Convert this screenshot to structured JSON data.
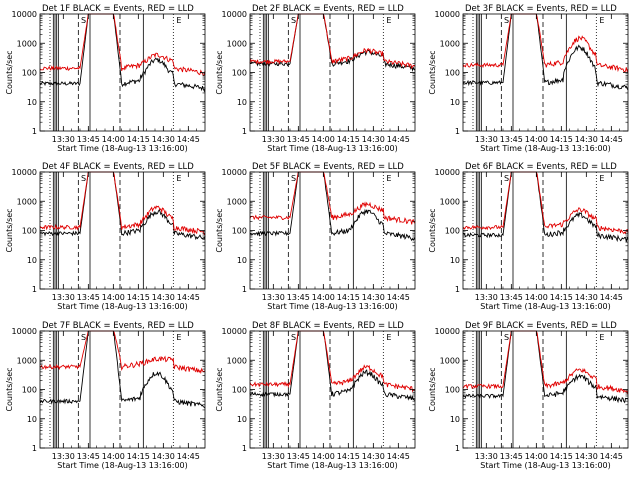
{
  "chart_data": [
    {
      "type": "line",
      "title": "Det 1F BLACK = Events, RED = LLD",
      "xlabel": "Start Time (18-Aug-13 13:16:00)",
      "ylabel": "Counts/sec",
      "yscale": "log",
      "ylim": [
        1,
        10000
      ],
      "x_tick_labels": [
        "13:30",
        "13:45",
        "14:00",
        "14:15",
        "14:30",
        "14:45"
      ],
      "y_tick_labels": [
        "1",
        "10",
        "100",
        "1000",
        "10000"
      ],
      "legend": "title",
      "annotations": [
        "S",
        "E"
      ],
      "series": [
        {
          "color": "#000000",
          "baseline": 42,
          "peak": 250
        },
        {
          "color": "#e00000",
          "baseline": 140,
          "peak": 330
        }
      ]
    },
    {
      "type": "line",
      "title": "Det 2F BLACK = Events, RED = LLD",
      "xlabel": "Start Time (18-Aug-13 13:16:00)",
      "ylabel": "Counts/sec",
      "yscale": "log",
      "ylim": [
        1,
        10000
      ],
      "x_tick_labels": [
        "13:30",
        "13:45",
        "14:00",
        "14:15",
        "14:30",
        "14:45"
      ],
      "y_tick_labels": [
        "1",
        "10",
        "100",
        "1000",
        "10000"
      ],
      "legend": "title",
      "annotations": [
        "S",
        "E"
      ],
      "series": [
        {
          "color": "#000000",
          "baseline": 200,
          "peak": 400
        },
        {
          "color": "#e00000",
          "baseline": 240,
          "peak": 450
        }
      ]
    },
    {
      "type": "line",
      "title": "Det 3F BLACK = Events, RED = LLD",
      "xlabel": "Start Time (18-Aug-13 13:16:00)",
      "ylabel": "Counts/sec",
      "yscale": "log",
      "ylim": [
        1,
        10000
      ],
      "x_tick_labels": [
        "13:30",
        "13:45",
        "14:00",
        "14:15",
        "14:30",
        "14:45"
      ],
      "y_tick_labels": [
        "1",
        "10",
        "100",
        "1000",
        "10000"
      ],
      "legend": "title",
      "annotations": [
        "S",
        "E"
      ],
      "series": [
        {
          "color": "#000000",
          "baseline": 45,
          "peak": 700
        },
        {
          "color": "#e00000",
          "baseline": 180,
          "peak": 1400
        }
      ]
    },
    {
      "type": "line",
      "title": "Det 4F BLACK = Events, RED = LLD",
      "xlabel": "Start Time (18-Aug-13 13:16:00)",
      "ylabel": "Counts/sec",
      "yscale": "log",
      "ylim": [
        1,
        10000
      ],
      "x_tick_labels": [
        "13:30",
        "13:45",
        "14:00",
        "14:15",
        "14:30",
        "14:45"
      ],
      "y_tick_labels": [
        "1",
        "10",
        "100",
        "1000",
        "10000"
      ],
      "legend": "title",
      "annotations": [
        "S",
        "E"
      ],
      "series": [
        {
          "color": "#000000",
          "baseline": 80,
          "peak": 400
        },
        {
          "color": "#e00000",
          "baseline": 130,
          "peak": 550
        }
      ]
    },
    {
      "type": "line",
      "title": "Det 5F BLACK = Events, RED = LLD",
      "xlabel": "Start Time (18-Aug-13 13:16:00)",
      "ylabel": "Counts/sec",
      "yscale": "log",
      "ylim": [
        1,
        10000
      ],
      "x_tick_labels": [
        "13:30",
        "13:45",
        "14:00",
        "14:15",
        "14:30",
        "14:45"
      ],
      "y_tick_labels": [
        "1",
        "10",
        "100",
        "1000",
        "10000"
      ],
      "legend": "title",
      "annotations": [
        "S",
        "E"
      ],
      "series": [
        {
          "color": "#000000",
          "baseline": 80,
          "peak": 420
        },
        {
          "color": "#e00000",
          "baseline": 280,
          "peak": 650
        }
      ]
    },
    {
      "type": "line",
      "title": "Det 6F BLACK = Events, RED = LLD",
      "xlabel": "Start Time (18-Aug-13 13:16:00)",
      "ylabel": "Counts/sec",
      "yscale": "log",
      "ylim": [
        1,
        10000
      ],
      "x_tick_labels": [
        "13:30",
        "13:45",
        "14:00",
        "14:15",
        "14:30",
        "14:45"
      ],
      "y_tick_labels": [
        "1",
        "10",
        "100",
        "1000",
        "10000"
      ],
      "legend": "title",
      "annotations": [
        "S",
        "E"
      ],
      "series": [
        {
          "color": "#000000",
          "baseline": 70,
          "peak": 300
        },
        {
          "color": "#e00000",
          "baseline": 130,
          "peak": 450
        }
      ]
    },
    {
      "type": "line",
      "title": "Det 7F BLACK = Events, RED = LLD",
      "xlabel": "Start Time (18-Aug-13 13:16:00)",
      "ylabel": "Counts/sec",
      "yscale": "log",
      "ylim": [
        1,
        10000
      ],
      "x_tick_labels": [
        "13:30",
        "13:45",
        "14:00",
        "14:15",
        "14:30",
        "14:45"
      ],
      "y_tick_labels": [
        "1",
        "10",
        "100",
        "1000",
        "10000"
      ],
      "legend": "title",
      "annotations": [
        "S",
        "E"
      ],
      "series": [
        {
          "color": "#000000",
          "baseline": 40,
          "peak": 350
        },
        {
          "color": "#e00000",
          "baseline": 600,
          "peak": 800
        }
      ]
    },
    {
      "type": "line",
      "title": "Det 8F BLACK = Events, RED = LLD",
      "xlabel": "Start Time (18-Aug-13 13:16:00)",
      "ylabel": "Counts/sec",
      "yscale": "log",
      "ylim": [
        1,
        10000
      ],
      "x_tick_labels": [
        "13:30",
        "13:45",
        "14:00",
        "14:15",
        "14:30",
        "14:45"
      ],
      "y_tick_labels": [
        "1",
        "10",
        "100",
        "1000",
        "10000"
      ],
      "legend": "title",
      "annotations": [
        "S",
        "E"
      ],
      "series": [
        {
          "color": "#000000",
          "baseline": 70,
          "peak": 350
        },
        {
          "color": "#e00000",
          "baseline": 150,
          "peak": 500
        }
      ]
    },
    {
      "type": "line",
      "title": "Det 9F BLACK = Events, RED = LLD",
      "xlabel": "Start Time (18-Aug-13 13:16:00)",
      "ylabel": "Counts/sec",
      "yscale": "log",
      "ylim": [
        1,
        10000
      ],
      "x_tick_labels": [
        "13:30",
        "13:45",
        "14:00",
        "14:15",
        "14:30",
        "14:45"
      ],
      "y_tick_labels": [
        "1",
        "10",
        "100",
        "1000",
        "10000"
      ],
      "legend": "title",
      "annotations": [
        "S",
        "E"
      ],
      "series": [
        {
          "color": "#000000",
          "baseline": 60,
          "peak": 250
        },
        {
          "color": "#e00000",
          "baseline": 130,
          "peak": 400
        }
      ]
    }
  ]
}
